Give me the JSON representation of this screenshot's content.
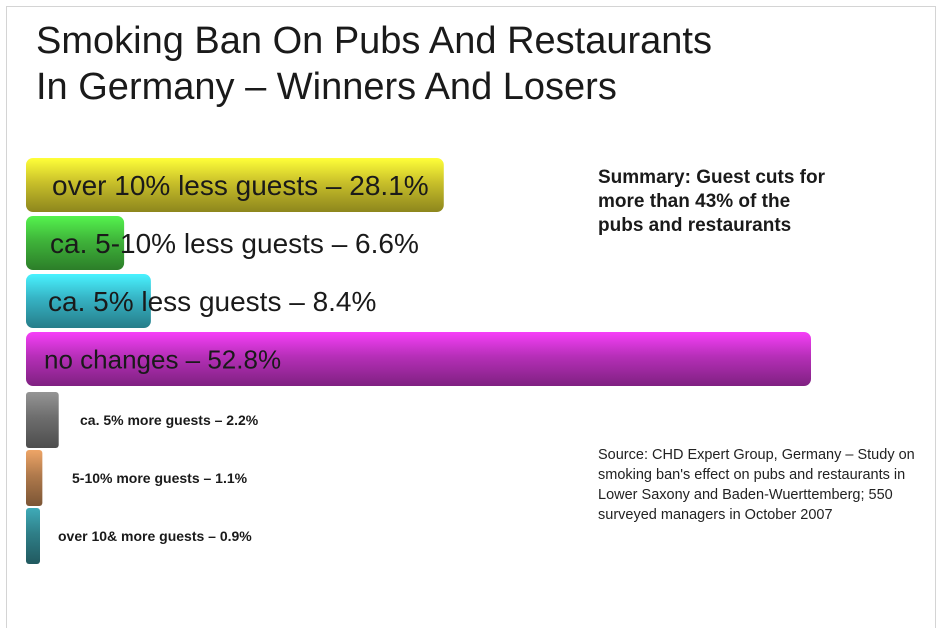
{
  "chart_data": {
    "type": "bar",
    "title_lines": [
      "Smoking Ban On Pubs And Restaurants",
      "In Germany – Winners And Losers"
    ],
    "bars": [
      {
        "label": "over 10% less guests – 28.1%",
        "value": 28.1,
        "color": "#c9c02a"
      },
      {
        "label": "ca. 5-10% less guests – 6.6%",
        "value": 6.6,
        "color": "#3fb43a"
      },
      {
        "label": "ca. 5% less guests – 8.4%",
        "value": 8.4,
        "color": "#36b3c4"
      },
      {
        "label": "no changes – 52.8%",
        "value": 52.8,
        "color": "#b62fb8"
      },
      {
        "label": "ca. 5% more guests – 2.2%",
        "value": 2.2,
        "color": "#6e6e6e"
      },
      {
        "label": "5-10% more guests – 1.1%",
        "value": 1.1,
        "color": "#b07a4c"
      },
      {
        "label": "over 10& more guests – 0.9%",
        "value": 0.9,
        "color": "#2f7f88"
      }
    ],
    "summary": "Summary: Guest cuts for more than 43% of the pubs and restaurants",
    "source": "Source: CHD Expert Group, Germany – Study on smoking ban's effect on pubs and restaurants in Lower Saxony and Baden-Wuerttemberg; 550 surveyed managers in October 2007"
  }
}
